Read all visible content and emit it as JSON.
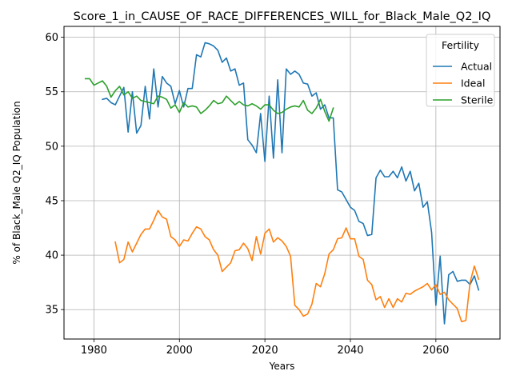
{
  "chart_data": {
    "type": "line",
    "title": "Score_1_in_CAUSE_OF_RACE_DIFFERENCES_WILL_for_Black_Male_Q2_IQ",
    "xlabel": "Years",
    "ylabel": "% of Black_Male Q2_IQ Population",
    "xlim": [
      1973,
      2075
    ],
    "ylim": [
      32.3,
      61.0
    ],
    "grid": true,
    "legend_title": "Fertility",
    "legend_placement": "top-right",
    "x_ticks": [
      1980,
      2000,
      2020,
      2040,
      2060
    ],
    "y_ticks": [
      35,
      40,
      45,
      50,
      55,
      60
    ],
    "series": [
      {
        "name": "Actual",
        "color": "#1f77b4",
        "x": [
          1982,
          1983,
          1984,
          1985,
          1986,
          1987,
          1988,
          1989,
          1990,
          1991,
          1992,
          1993,
          1994,
          1995,
          1996,
          1997,
          1998,
          1999,
          2000,
          2001,
          2002,
          2003,
          2004,
          2005,
          2006,
          2007,
          2008,
          2009,
          2010,
          2011,
          2012,
          2013,
          2014,
          2015,
          2016,
          2017,
          2018,
          2019,
          2020,
          2021,
          2022,
          2023,
          2024,
          2025,
          2026,
          2027,
          2028,
          2029,
          2030,
          2031,
          2032,
          2033,
          2034,
          2035,
          2036,
          2037,
          2038,
          2039,
          2040,
          2041,
          2042,
          2043,
          2044,
          2045,
          2046,
          2047,
          2048,
          2049,
          2050,
          2051,
          2052,
          2053,
          2054,
          2055,
          2056,
          2057,
          2058,
          2059,
          2060,
          2061,
          2062,
          2063,
          2064,
          2065,
          2066,
          2067,
          2068,
          2069,
          2070
        ],
        "values": [
          54.3,
          54.4,
          54.0,
          53.8,
          54.6,
          55.4,
          51.3,
          55.0,
          51.2,
          51.9,
          55.5,
          52.5,
          57.1,
          53.6,
          56.4,
          55.8,
          55.5,
          53.9,
          55.1,
          53.6,
          55.3,
          55.3,
          58.4,
          58.2,
          59.5,
          59.4,
          59.2,
          58.8,
          57.7,
          58.1,
          56.9,
          57.1,
          55.6,
          55.8,
          50.6,
          50.1,
          49.4,
          53.0,
          48.6,
          54.6,
          48.9,
          56.1,
          49.4,
          57.1,
          56.6,
          56.9,
          56.6,
          55.8,
          55.7,
          54.6,
          54.9,
          53.4,
          53.8,
          52.6,
          52.6,
          46.0,
          45.8,
          45.1,
          44.4,
          44.1,
          43.1,
          42.9,
          41.8,
          41.9,
          47.1,
          47.8,
          47.2,
          47.2,
          47.7,
          47.1,
          48.1,
          46.8,
          47.7,
          45.9,
          46.6,
          44.4,
          44.9,
          42.1,
          35.4,
          39.9,
          33.7,
          38.2,
          38.5,
          37.6,
          37.7,
          37.7,
          37.3,
          38.1,
          36.8
        ]
      },
      {
        "name": "Ideal",
        "color": "#ff7f0e",
        "x": [
          1985,
          1986,
          1987,
          1988,
          1989,
          1990,
          1991,
          1992,
          1993,
          1994,
          1995,
          1996,
          1997,
          1998,
          1999,
          2000,
          2001,
          2002,
          2003,
          2004,
          2005,
          2006,
          2007,
          2008,
          2009,
          2010,
          2011,
          2012,
          2013,
          2014,
          2015,
          2016,
          2017,
          2018,
          2019,
          2020,
          2021,
          2022,
          2023,
          2024,
          2025,
          2026,
          2027,
          2028,
          2029,
          2030,
          2031,
          2032,
          2033,
          2034,
          2035,
          2036,
          2037,
          2038,
          2039,
          2040,
          2041,
          2042,
          2043,
          2044,
          2045,
          2046,
          2047,
          2048,
          2049,
          2050,
          2051,
          2052,
          2053,
          2054,
          2055,
          2056,
          2057,
          2058,
          2059,
          2060,
          2061,
          2062,
          2063,
          2064,
          2065,
          2066,
          2067,
          2068,
          2069,
          2070
        ],
        "values": [
          41.2,
          39.3,
          39.6,
          41.2,
          40.3,
          41.1,
          41.9,
          42.4,
          42.4,
          43.2,
          44.1,
          43.5,
          43.3,
          41.7,
          41.4,
          40.8,
          41.4,
          41.3,
          42.0,
          42.6,
          42.4,
          41.7,
          41.4,
          40.5,
          40.0,
          38.5,
          38.9,
          39.3,
          40.4,
          40.5,
          41.1,
          40.6,
          39.5,
          41.7,
          40.1,
          42.0,
          42.4,
          41.2,
          41.6,
          41.3,
          40.8,
          39.9,
          35.4,
          35.0,
          34.4,
          34.6,
          35.5,
          37.4,
          37.1,
          38.3,
          40.1,
          40.5,
          41.5,
          41.6,
          42.5,
          41.5,
          41.5,
          39.9,
          39.6,
          37.7,
          37.3,
          35.9,
          36.2,
          35.2,
          36.0,
          35.2,
          36.0,
          35.7,
          36.5,
          36.4,
          36.7,
          36.9,
          37.1,
          37.4,
          36.8,
          37.3,
          36.4,
          36.6,
          35.9,
          35.5,
          35.1,
          33.9,
          34.0,
          37.5,
          39.0,
          37.8
        ]
      },
      {
        "name": "Sterile",
        "color": "#2ca02c",
        "x": [
          1978,
          1979,
          1980,
          1981,
          1982,
          1983,
          1984,
          1985,
          1986,
          1987,
          1988,
          1989,
          1990,
          1991,
          1992,
          1993,
          1994,
          1995,
          1996,
          1997,
          1998,
          1999,
          2000,
          2001,
          2002,
          2003,
          2004,
          2005,
          2006,
          2007,
          2008,
          2009,
          2010,
          2011,
          2012,
          2013,
          2014,
          2015,
          2016,
          2017,
          2018,
          2019,
          2020,
          2021,
          2022,
          2023,
          2024,
          2025,
          2026,
          2027,
          2028,
          2029,
          2030,
          2031,
          2032,
          2033,
          2034,
          2035,
          2036
        ],
        "values": [
          56.2,
          56.2,
          55.6,
          55.8,
          56.0,
          55.5,
          54.5,
          55.1,
          55.5,
          54.7,
          55.0,
          54.4,
          54.6,
          54.2,
          54.1,
          54.0,
          53.9,
          54.6,
          54.5,
          54.3,
          53.5,
          53.8,
          53.1,
          54.0,
          53.6,
          53.7,
          53.6,
          53.0,
          53.3,
          53.7,
          54.2,
          53.9,
          54.0,
          54.6,
          54.2,
          53.8,
          54.1,
          53.8,
          53.7,
          53.9,
          53.7,
          53.4,
          53.8,
          53.8,
          53.3,
          53.0,
          53.1,
          53.4,
          53.6,
          53.7,
          53.6,
          54.2,
          53.3,
          53.0,
          53.5,
          54.3,
          53.2,
          52.3,
          53.5
        ]
      }
    ]
  }
}
